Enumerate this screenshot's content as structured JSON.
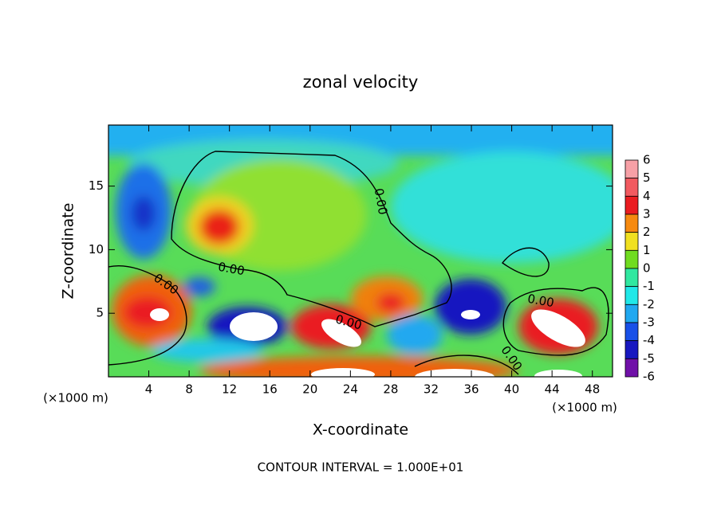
{
  "chart_data": {
    "type": "contour",
    "title": "zonal velocity",
    "xlabel": "X-coordinate",
    "ylabel": "Z-coordinate",
    "x_unit_label_left": "(×1000 m)",
    "x_unit_label_right": "(×1000 m)",
    "footer": "CONTOUR INTERVAL = 1.000E+01",
    "xlim": [
      0,
      50
    ],
    "xticks": [
      4,
      8,
      12,
      16,
      20,
      24,
      28,
      32,
      36,
      40,
      44,
      48
    ],
    "ylim": [
      0,
      19.8
    ],
    "yticks": [
      5,
      10,
      15
    ],
    "contour_labels": [
      "0.00",
      "0.00",
      "0.00",
      "0.00",
      "0.00",
      "0.00"
    ],
    "colorbar": {
      "levels": [
        6,
        5,
        4,
        3,
        2,
        1,
        0,
        -1,
        -2,
        -3,
        -4,
        -5,
        -6
      ],
      "colors": [
        "#f7a0a6",
        "#f25a60",
        "#ea1c20",
        "#f68a10",
        "#f0e020",
        "#70dc20",
        "#30e8a0",
        "#20e8e8",
        "#20a8f0",
        "#1850e8",
        "#1818c0",
        "#7010a8"
      ]
    }
  }
}
